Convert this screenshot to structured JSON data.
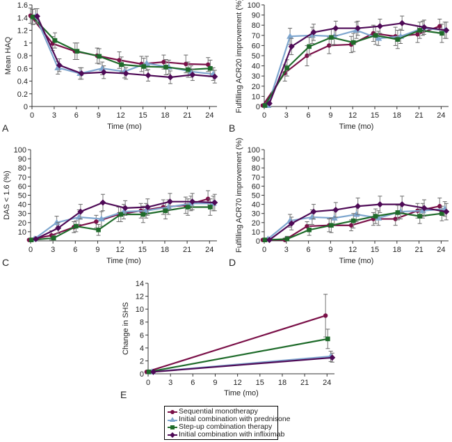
{
  "legend": [
    {
      "name": "Sequential monotherapy",
      "color": "#7a1048",
      "marker": "circle"
    },
    {
      "name": "Initial combination with prednisone",
      "color": "#7ea6cf",
      "marker": "triangle"
    },
    {
      "name": "Step-up combination therapy",
      "color": "#1e6b2a",
      "marker": "square"
    },
    {
      "name": "Initial combination with infliximab",
      "color": "#4e0a56",
      "marker": "diamond"
    }
  ],
  "chart_data": [
    {
      "id": "A",
      "type": "line",
      "panel_label": "A",
      "xlabel": "Time (mo)",
      "ylabel": "Mean HAQ",
      "xlim": [
        0,
        25
      ],
      "ylim": [
        0,
        1.6
      ],
      "xticks": [
        "0",
        "3",
        "6",
        "9",
        "12",
        "15",
        "18",
        "21",
        "24"
      ],
      "yticks": [
        "0",
        "0.2",
        "0.4",
        "0.6",
        "0.8",
        "1",
        "1.2",
        "1.4",
        "1.6"
      ],
      "x": [
        0,
        3,
        6,
        9,
        12,
        15,
        18,
        21,
        24
      ],
      "series": [
        {
          "name": "Sequential monotherapy",
          "values": [
            1.43,
            0.99,
            0.87,
            0.8,
            0.73,
            0.67,
            0.7,
            0.67,
            0.66
          ],
          "err": [
            0.12,
            0.11,
            0.13,
            0.12,
            0.13,
            0.12,
            0.11,
            0.14,
            0.11
          ]
        },
        {
          "name": "Initial combination with prednisone",
          "values": [
            1.42,
            0.61,
            0.52,
            0.6,
            0.55,
            0.68,
            0.62,
            0.55,
            0.51
          ],
          "err": [
            0.12,
            0.1,
            0.09,
            0.1,
            0.1,
            0.11,
            0.11,
            0.09,
            0.1
          ]
        },
        {
          "name": "Step-up combination therapy",
          "values": [
            1.41,
            1.04,
            0.87,
            0.79,
            0.66,
            0.63,
            0.62,
            0.58,
            0.6
          ],
          "err": [
            0.12,
            0.12,
            0.13,
            0.12,
            0.12,
            0.13,
            0.12,
            0.12,
            0.13
          ]
        },
        {
          "name": "Initial combination with infliximab",
          "values": [
            1.42,
            0.65,
            0.52,
            0.54,
            0.52,
            0.49,
            0.46,
            0.5,
            0.47
          ],
          "err": [
            0.12,
            0.1,
            0.09,
            0.1,
            0.09,
            0.09,
            0.1,
            0.09,
            0.1
          ]
        }
      ]
    },
    {
      "id": "B",
      "type": "line",
      "panel_label": "B",
      "xlabel": "Time (mo)",
      "ylabel": "Fulfilling ACR20 improvement (%)",
      "xlim": [
        0,
        25
      ],
      "ylim": [
        0,
        100
      ],
      "xticks": [
        "0",
        "3",
        "6",
        "9",
        "12",
        "15",
        "18",
        "21",
        "24"
      ],
      "yticks": [
        "0",
        "10",
        "20",
        "30",
        "40",
        "50",
        "60",
        "70",
        "80",
        "90",
        "100"
      ],
      "x": [
        0,
        3,
        6,
        9,
        12,
        15,
        18,
        21,
        24
      ],
      "series": [
        {
          "name": "Sequential monotherapy",
          "values": [
            1,
            33,
            50,
            60,
            61,
            72,
            69,
            71,
            79
          ],
          "err": [
            1,
            8,
            10,
            8,
            8,
            8,
            9,
            8,
            7
          ]
        },
        {
          "name": "Initial combination with prednisone",
          "values": [
            1,
            69,
            70,
            69,
            75,
            67,
            69,
            77,
            75
          ],
          "err": [
            1,
            8,
            8,
            8,
            8,
            7,
            7,
            7,
            8
          ]
        },
        {
          "name": "Step-up combination therapy",
          "values": [
            1,
            38,
            59,
            68,
            63,
            70,
            66,
            75,
            72
          ],
          "err": [
            1,
            8,
            9,
            8,
            9,
            9,
            9,
            8,
            9
          ]
        },
        {
          "name": "Initial combination with infliximab",
          "values": [
            3,
            59,
            73,
            77,
            77,
            79,
            82,
            78,
            75
          ],
          "err": [
            1,
            8,
            8,
            7,
            7,
            7,
            7,
            7,
            8
          ]
        }
      ]
    },
    {
      "id": "C",
      "type": "line",
      "panel_label": "C",
      "xlabel": "Time (mo)",
      "ylabel": "DAS < 1.6 (%)",
      "xlim": [
        0,
        25
      ],
      "ylim": [
        0,
        100
      ],
      "xticks": [
        "0",
        "3",
        "6",
        "9",
        "12",
        "15",
        "18",
        "21",
        "24"
      ],
      "yticks": [
        "10",
        "20",
        "30",
        "40",
        "50",
        "60",
        "70",
        "80",
        "90",
        "100"
      ],
      "x": [
        0,
        3,
        6,
        9,
        12,
        15,
        18,
        21,
        24
      ],
      "series": [
        {
          "name": "Sequential monotherapy",
          "values": [
            1,
            6,
            15,
            21,
            29,
            33,
            37,
            39,
            46
          ],
          "err": [
            1,
            5,
            6,
            7,
            8,
            8,
            8,
            9,
            9
          ]
        },
        {
          "name": "Initial combination with prednisone",
          "values": [
            2,
            20,
            26,
            24,
            32,
            33,
            37,
            41,
            41
          ],
          "err": [
            1,
            7,
            8,
            8,
            8,
            8,
            8,
            8,
            8
          ]
        },
        {
          "name": "Step-up combination therapy",
          "values": [
            1,
            3,
            16,
            12,
            29,
            29,
            33,
            37,
            37
          ],
          "err": [
            1,
            3,
            6,
            6,
            8,
            9,
            9,
            9,
            9
          ]
        },
        {
          "name": "Initial combination with infliximab",
          "values": [
            2,
            14,
            32,
            42,
            36,
            37,
            43,
            43,
            42
          ],
          "err": [
            1,
            6,
            8,
            9,
            8,
            9,
            9,
            9,
            9
          ]
        }
      ]
    },
    {
      "id": "D",
      "type": "line",
      "panel_label": "D",
      "xlabel": "Time (mo)",
      "ylabel": "Fulfilling ACR70 improvement (%)",
      "xlim": [
        0,
        25
      ],
      "ylim": [
        0,
        100
      ],
      "xticks": [
        "0",
        "3",
        "6",
        "9",
        "12",
        "15",
        "18",
        "21",
        "24"
      ],
      "yticks": [
        "0",
        "10",
        "20",
        "30",
        "40",
        "50",
        "60",
        "70",
        "80",
        "90",
        "100"
      ],
      "x": [
        0,
        3,
        6,
        9,
        12,
        15,
        18,
        21,
        24
      ],
      "series": [
        {
          "name": "Sequential monotherapy",
          "values": [
            1,
            1,
            16,
            17,
            17,
            24,
            24,
            33,
            38
          ],
          "err": [
            1,
            2,
            5,
            7,
            6,
            7,
            7,
            8,
            9
          ]
        },
        {
          "name": "Initial combination with prednisone",
          "values": [
            2,
            22,
            26,
            25,
            29,
            25,
            32,
            33,
            35
          ],
          "err": [
            1,
            7,
            8,
            8,
            8,
            8,
            8,
            8,
            8
          ]
        },
        {
          "name": "Step-up combination therapy",
          "values": [
            1,
            2,
            12,
            17,
            22,
            27,
            31,
            27,
            30
          ],
          "err": [
            1,
            3,
            6,
            8,
            8,
            8,
            8,
            8,
            8
          ]
        },
        {
          "name": "Initial combination with infliximab",
          "values": [
            1,
            19,
            32,
            34,
            38,
            40,
            40,
            36,
            32
          ],
          "err": [
            1,
            7,
            8,
            8,
            9,
            9,
            9,
            9,
            9
          ]
        }
      ]
    },
    {
      "id": "E",
      "type": "line",
      "panel_label": "E",
      "xlabel": "Time (mo)",
      "ylabel": "Change in SHS",
      "xlim": [
        0,
        25
      ],
      "ylim": [
        0,
        14
      ],
      "xticks": [
        "0",
        "3",
        "6",
        "9",
        "12",
        "15",
        "18",
        "21",
        "24"
      ],
      "yticks": [
        "0",
        "2",
        "4",
        "6",
        "8",
        "10",
        "12",
        "14"
      ],
      "x": [
        0,
        24
      ],
      "series": [
        {
          "name": "Sequential monotherapy",
          "values": [
            0.3,
            9.0
          ],
          "err": [
            0.1,
            3.3
          ]
        },
        {
          "name": "Initial combination with prednisone",
          "values": [
            0.3,
            2.7
          ],
          "err": [
            0.1,
            0.8
          ]
        },
        {
          "name": "Step-up combination therapy",
          "values": [
            0.3,
            5.4
          ],
          "err": [
            0.1,
            1.5
          ]
        },
        {
          "name": "Initial combination with infliximab",
          "values": [
            0.3,
            2.5
          ],
          "err": [
            0.1,
            0.7
          ]
        }
      ]
    }
  ]
}
